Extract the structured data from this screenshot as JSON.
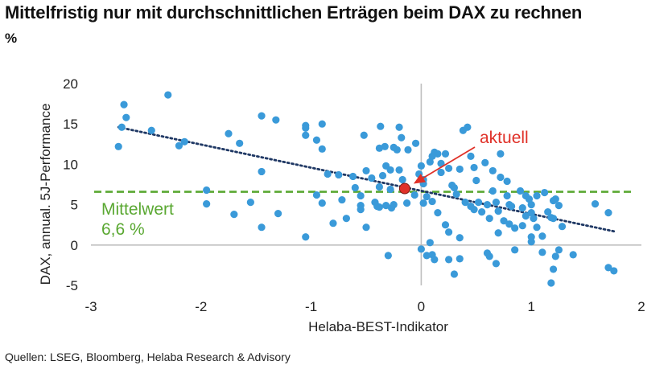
{
  "title": "Mittelfristig nur mit durchschnittlichen Erträgen beim DAX zu rechnen",
  "unit": "%",
  "source": "Quellen: LSEG, Bloomberg, Helaba Research & Advisory",
  "colors": {
    "points": "#3a9ad9",
    "trend": "#1f3864",
    "mean_line": "#5aa832",
    "current": "#e03128",
    "axis": "#bfbfbf"
  },
  "chart_data": {
    "type": "scatter",
    "xlabel": "Helaba-BEST-Indikator",
    "ylabel": "DAX, annual. 5J-Performance",
    "xlim": [
      -3,
      2
    ],
    "ylim": [
      -5,
      20
    ],
    "xticks": [
      "-3",
      "-2",
      "-1",
      "0",
      "1",
      "2"
    ],
    "yticks": [
      "-5",
      "0",
      "5",
      "10",
      "15",
      "20"
    ],
    "grid": false,
    "mean": {
      "value": 6.6,
      "label_line1": "Mittelwert",
      "label_line2": "6,6 %"
    },
    "current": {
      "x": -0.15,
      "y": 7.0,
      "label": "aktuell"
    },
    "trend": {
      "x1": -2.75,
      "y1": 14.6,
      "x2": 1.75,
      "y2": 1.7
    },
    "points": [
      [
        -2.7,
        17.4
      ],
      [
        -2.68,
        15.8
      ],
      [
        -2.72,
        14.6
      ],
      [
        -2.75,
        12.2
      ],
      [
        -2.3,
        18.6
      ],
      [
        -2.45,
        14.2
      ],
      [
        -2.2,
        12.3
      ],
      [
        -2.15,
        12.8
      ],
      [
        -1.95,
        6.8
      ],
      [
        -1.95,
        5.1
      ],
      [
        -1.75,
        13.8
      ],
      [
        -1.7,
        3.8
      ],
      [
        -1.55,
        5.3
      ],
      [
        -1.65,
        12.6
      ],
      [
        -1.45,
        9.1
      ],
      [
        -1.45,
        2.2
      ],
      [
        -1.45,
        16.0
      ],
      [
        -1.32,
        15.5
      ],
      [
        -1.3,
        3.9
      ],
      [
        -1.05,
        14.5
      ],
      [
        -1.05,
        14.8
      ],
      [
        -1.05,
        13.6
      ],
      [
        -1.05,
        1.0
      ],
      [
        -0.95,
        13.0
      ],
      [
        -0.9,
        15.0
      ],
      [
        -0.9,
        11.9
      ],
      [
        -0.85,
        8.8
      ],
      [
        -0.95,
        6.2
      ],
      [
        -0.9,
        5.2
      ],
      [
        -0.8,
        2.7
      ],
      [
        -0.75,
        8.7
      ],
      [
        -0.72,
        5.6
      ],
      [
        -0.68,
        3.3
      ],
      [
        -0.62,
        8.5
      ],
      [
        -0.6,
        7.1
      ],
      [
        -0.55,
        4.9
      ],
      [
        -0.55,
        6.1
      ],
      [
        -0.5,
        9.2
      ],
      [
        -0.52,
        13.6
      ],
      [
        -0.45,
        8.3
      ],
      [
        -0.42,
        5.3
      ],
      [
        -0.5,
        2.2
      ],
      [
        -0.4,
        4.8
      ],
      [
        -0.38,
        7.2
      ],
      [
        -0.35,
        8.6
      ],
      [
        -0.38,
        12.0
      ],
      [
        -0.37,
        14.7
      ],
      [
        -0.33,
        12.2
      ],
      [
        -0.32,
        9.8
      ],
      [
        -0.28,
        6.9
      ],
      [
        -0.25,
        5.0
      ],
      [
        -0.27,
        4.6
      ],
      [
        -0.2,
        14.6
      ],
      [
        -0.18,
        13.3
      ],
      [
        -0.22,
        11.8
      ],
      [
        -0.2,
        9.3
      ],
      [
        -0.17,
        8.1
      ],
      [
        -0.13,
        5.2
      ],
      [
        -0.12,
        11.8
      ],
      [
        -0.3,
        -1.3
      ],
      [
        -0.38,
        4.7
      ],
      [
        -0.32,
        4.9
      ],
      [
        -0.28,
        9.3
      ],
      [
        -0.25,
        12.1
      ],
      [
        -0.05,
        12.6
      ],
      [
        -0.02,
        8.8
      ],
      [
        0.0,
        9.8
      ],
      [
        0.02,
        7.6
      ],
      [
        0.05,
        6.0
      ],
      [
        0.02,
        5.2
      ],
      [
        0.08,
        10.3
      ],
      [
        0.1,
        11.0
      ],
      [
        0.12,
        11.5
      ],
      [
        0.15,
        11.3
      ],
      [
        0.18,
        10.1
      ],
      [
        0.18,
        9.0
      ],
      [
        0.22,
        11.3
      ],
      [
        0.25,
        9.5
      ],
      [
        0.3,
        7.1
      ],
      [
        0.32,
        6.3
      ],
      [
        0.35,
        9.4
      ],
      [
        0.38,
        14.2
      ],
      [
        0.42,
        14.6
      ],
      [
        0.45,
        11.0
      ],
      [
        0.48,
        9.6
      ],
      [
        0.5,
        8.0
      ],
      [
        0.1,
        5.4
      ],
      [
        0.15,
        4.0
      ],
      [
        0.22,
        2.5
      ],
      [
        0.25,
        1.6
      ],
      [
        0.08,
        0.3
      ],
      [
        0.1,
        -1.2
      ],
      [
        0.12,
        -1.8
      ],
      [
        0.05,
        -1.3
      ],
      [
        0.0,
        -0.5
      ],
      [
        0.25,
        -1.8
      ],
      [
        0.3,
        -3.6
      ],
      [
        0.35,
        -1.7
      ],
      [
        0.35,
        0.9
      ],
      [
        0.45,
        4.8
      ],
      [
        0.48,
        4.4
      ],
      [
        0.52,
        5.3
      ],
      [
        0.55,
        4.1
      ],
      [
        0.6,
        5.0
      ],
      [
        0.58,
        10.2
      ],
      [
        0.65,
        9.2
      ],
      [
        0.65,
        6.7
      ],
      [
        0.68,
        5.3
      ],
      [
        0.7,
        4.2
      ],
      [
        0.72,
        11.3
      ],
      [
        0.72,
        8.4
      ],
      [
        0.78,
        7.9
      ],
      [
        0.78,
        6.1
      ],
      [
        0.8,
        5.0
      ],
      [
        0.82,
        4.8
      ],
      [
        0.75,
        3.0
      ],
      [
        0.7,
        1.5
      ],
      [
        0.62,
        3.3
      ],
      [
        0.6,
        -1.0
      ],
      [
        0.62,
        -1.4
      ],
      [
        0.68,
        -2.3
      ],
      [
        0.85,
        2.1
      ],
      [
        0.85,
        -0.6
      ],
      [
        0.9,
        6.7
      ],
      [
        0.92,
        4.6
      ],
      [
        0.95,
        6.1
      ],
      [
        0.98,
        5.7
      ],
      [
        0.95,
        3.6
      ],
      [
        0.92,
        2.4
      ],
      [
        1.0,
        5.0
      ],
      [
        1.0,
        4.0
      ],
      [
        1.02,
        3.3
      ],
      [
        1.0,
        1.0
      ],
      [
        1.0,
        0.4
      ],
      [
        1.05,
        6.1
      ],
      [
        1.05,
        2.2
      ],
      [
        1.1,
        1.1
      ],
      [
        1.1,
        -0.9
      ],
      [
        1.15,
        4.1
      ],
      [
        1.18,
        3.4
      ],
      [
        1.2,
        5.5
      ],
      [
        1.22,
        5.7
      ],
      [
        1.25,
        4.9
      ],
      [
        1.2,
        3.3
      ],
      [
        1.28,
        2.3
      ],
      [
        1.25,
        -0.6
      ],
      [
        1.22,
        -1.4
      ],
      [
        1.2,
        -3.0
      ],
      [
        1.18,
        -4.7
      ],
      [
        1.38,
        -1.2
      ],
      [
        1.58,
        5.1
      ],
      [
        1.7,
        4.0
      ],
      [
        1.7,
        -2.8
      ],
      [
        1.75,
        -3.2
      ],
      [
        0.02,
        8.1
      ],
      [
        -0.06,
        6.2
      ],
      [
        0.4,
        5.3
      ],
      [
        0.28,
        7.4
      ],
      [
        1.12,
        6.5
      ],
      [
        0.8,
        2.6
      ],
      [
        -0.55,
        4.4
      ]
    ]
  }
}
